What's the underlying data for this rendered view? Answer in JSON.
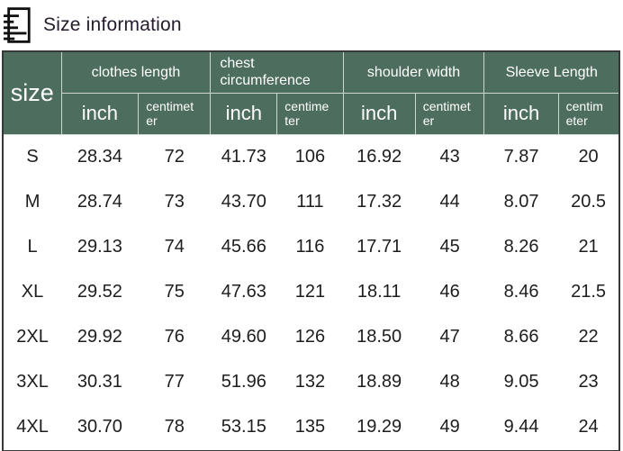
{
  "header": {
    "title": "Size information",
    "icon": "size-chart-icon"
  },
  "table": {
    "size_label": "size",
    "groups": [
      {
        "label": "clothes length",
        "units": [
          "inch",
          "centimeter"
        ]
      },
      {
        "label": "chest circumference",
        "units": [
          "inch",
          "centimeter"
        ]
      },
      {
        "label": "shoulder width",
        "units": [
          "inch",
          "centimeter"
        ]
      },
      {
        "label": "Sleeve Length",
        "units": [
          "inch",
          "centimeter"
        ]
      }
    ],
    "rows": [
      {
        "size": "S",
        "values": [
          "28.34",
          "72",
          "41.73",
          "106",
          "16.92",
          "43",
          "7.87",
          "20"
        ]
      },
      {
        "size": "M",
        "values": [
          "28.74",
          "73",
          "43.70",
          "111",
          "17.32",
          "44",
          "8.07",
          "20.5"
        ]
      },
      {
        "size": "L",
        "values": [
          "29.13",
          "74",
          "45.66",
          "116",
          "17.71",
          "45",
          "8.26",
          "21"
        ]
      },
      {
        "size": "XL",
        "values": [
          "29.52",
          "75",
          "47.63",
          "121",
          "18.11",
          "46",
          "8.46",
          "21.5"
        ]
      },
      {
        "size": "2XL",
        "values": [
          "29.92",
          "76",
          "49.60",
          "126",
          "18.50",
          "47",
          "8.66",
          "22"
        ]
      },
      {
        "size": "3XL",
        "values": [
          "30.31",
          "77",
          "51.96",
          "132",
          "18.89",
          "48",
          "9.05",
          "23"
        ]
      },
      {
        "size": "4XL",
        "values": [
          "30.70",
          "78",
          "53.15",
          "135",
          "19.29",
          "49",
          "9.44",
          "24"
        ]
      }
    ]
  },
  "colors": {
    "header_bg": "#4d6e5f",
    "header_text": "#ffffff",
    "header_divider": "#ccd7d0",
    "table_border": "#383838",
    "body_text": "#1d1d1d",
    "title_text": "#241b2b"
  }
}
